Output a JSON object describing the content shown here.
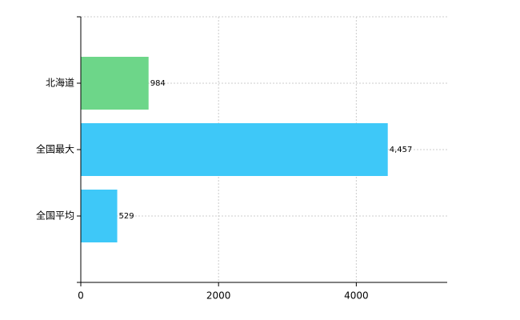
{
  "chart_data": {
    "type": "bar",
    "orientation": "horizontal",
    "categories": [
      "北海道",
      "全国最大",
      "全国平均"
    ],
    "values": [
      984,
      4457,
      529
    ],
    "value_labels": [
      "984",
      "4,457",
      "529"
    ],
    "colors": [
      "#6dd689",
      "#3ec8f8",
      "#3ec8f8"
    ],
    "xlim": [
      0,
      5320
    ],
    "xticks": [
      0,
      2000,
      4000
    ],
    "grid": true
  }
}
